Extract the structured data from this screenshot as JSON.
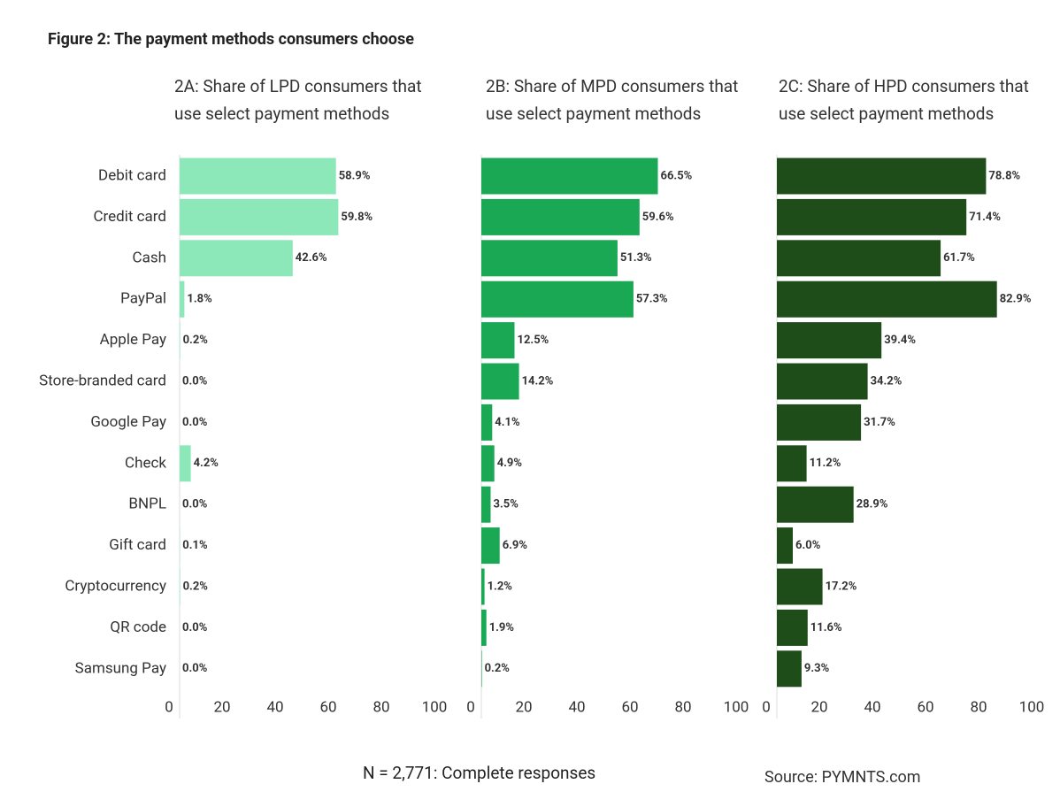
{
  "figure_title": "Figure 2: The payment methods consumers choose",
  "footnote": "N = 2,771: Complete responses",
  "source": "Source: PYMNTS.com",
  "chart_data": [
    {
      "type": "hbar",
      "title": "2A: Share of LPD consumers that use select payment methods",
      "categories": [
        "Debit card",
        "Credit card",
        "Cash",
        "PayPal",
        "Apple Pay",
        "Store-branded card",
        "Google Pay",
        "Check",
        "BNPL",
        "Gift card",
        "Cryptocurrency",
        "QR code",
        "Samsung Pay"
      ],
      "values": [
        58.9,
        59.8,
        42.6,
        1.8,
        0.2,
        0,
        0,
        4.2,
        0,
        0.1,
        0.2,
        0,
        0
      ],
      "value_labels": [
        "58.9%",
        "59.8%",
        "42.6%",
        "1.8%",
        "0.2%",
        "0.0%",
        "0.0%",
        "4.2%",
        "0.0%",
        "0.1%",
        "0.2%",
        "0.0%",
        "0.0%"
      ],
      "color": "#8de8b9",
      "xlim": [
        0,
        100
      ],
      "xticks": [
        0,
        20,
        40,
        60,
        80,
        100
      ],
      "grid": false
    },
    {
      "type": "hbar",
      "title": "2B: Share of MPD consumers that use select payment methods",
      "values": [
        66.5,
        59.6,
        51.3,
        57.3,
        12.5,
        14.2,
        4.1,
        4.9,
        3.5,
        6.9,
        1.2,
        1.9,
        0.2
      ],
      "value_labels": [
        "66.5%",
        "59.6%",
        "51.3%",
        "57.3%",
        "12.5%",
        "14.2%",
        "4.1%",
        "4.9%",
        "3.5%",
        "6.9%",
        "1.2%",
        "1.9%",
        "0.2%"
      ],
      "color": "#1aa854",
      "xlim": [
        0,
        100
      ],
      "xticks": [
        0,
        20,
        40,
        60,
        80,
        100
      ],
      "grid": false
    },
    {
      "type": "hbar",
      "title": "2C: Share of HPD consumers that use select payment methods",
      "values": [
        78.8,
        71.4,
        61.7,
        82.9,
        39.4,
        34.2,
        31.7,
        11.2,
        28.9,
        6.0,
        17.2,
        11.6,
        9.3
      ],
      "value_labels": [
        "78.8%",
        "71.4%",
        "61.7%",
        "82.9%",
        "39.4%",
        "34.2%",
        "31.7%",
        "11.2%",
        "28.9%",
        "6.0%",
        "17.2%",
        "11.6%",
        "9.3%"
      ],
      "color": "#1f4d19",
      "xlim": [
        0,
        100
      ],
      "xticks": [
        0,
        20,
        40,
        60,
        80,
        100
      ],
      "grid": false
    }
  ]
}
